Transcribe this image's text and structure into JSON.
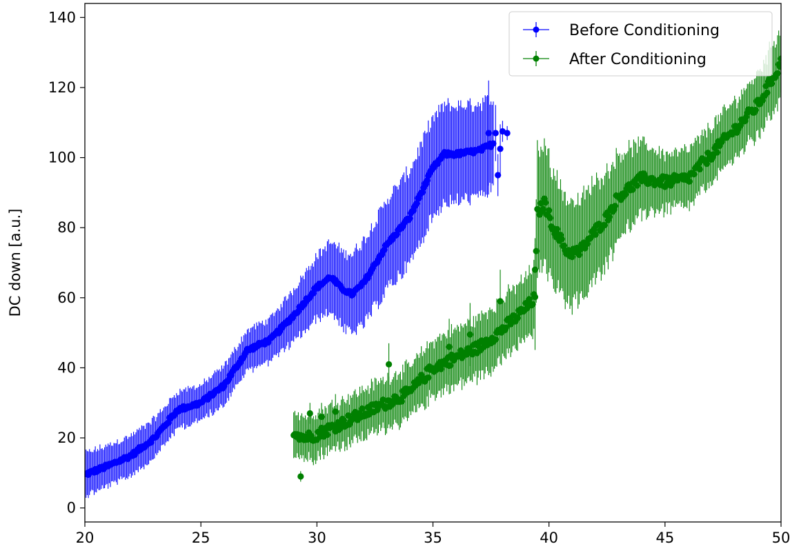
{
  "chart_data": {
    "type": "scatter",
    "subtype": "errorbar",
    "title": "",
    "xlabel": "",
    "ylabel": "DC down [a.u.]",
    "xlim": [
      20,
      50
    ],
    "ylim": [
      -4,
      144
    ],
    "xticks": [
      20,
      25,
      30,
      35,
      40,
      45,
      50
    ],
    "yticks": [
      0,
      20,
      40,
      60,
      80,
      100,
      120,
      140
    ],
    "grid": false,
    "legend_position": "top-right",
    "series": [
      {
        "name": "Before Conditioning",
        "color": "#0000ff",
        "x_start": 20.0,
        "x_step": 0.1,
        "anchors": [
          [
            20.0,
            9.5
          ],
          [
            21.0,
            12
          ],
          [
            22.0,
            15
          ],
          [
            23.0,
            20
          ],
          [
            24.0,
            28
          ],
          [
            25.0,
            30
          ],
          [
            26.0,
            35
          ],
          [
            27.0,
            45
          ],
          [
            28.0,
            48
          ],
          [
            29.0,
            55
          ],
          [
            30.0,
            63
          ],
          [
            30.6,
            66
          ],
          [
            31.0,
            63
          ],
          [
            31.5,
            61
          ],
          [
            32.0,
            64
          ],
          [
            33.0,
            75
          ],
          [
            34.0,
            83
          ],
          [
            34.5,
            90
          ],
          [
            35.0,
            97
          ],
          [
            35.5,
            101
          ],
          [
            36.0,
            101
          ],
          [
            37.0,
            102
          ],
          [
            37.6,
            104
          ]
        ],
        "err_anchors": [
          [
            20.0,
            6
          ],
          [
            25.0,
            5
          ],
          [
            28.0,
            6
          ],
          [
            30.0,
            9
          ],
          [
            32.0,
            12
          ],
          [
            35.0,
            14
          ],
          [
            37.6,
            13
          ]
        ],
        "extra_points": [
          {
            "x": 37.7,
            "y": 107,
            "err": 8
          },
          {
            "x": 37.8,
            "y": 95,
            "err": 6
          },
          {
            "x": 37.9,
            "y": 102.5,
            "err": 7
          },
          {
            "x": 38.0,
            "y": 107.5,
            "err": 3
          },
          {
            "x": 38.2,
            "y": 107,
            "err": 2
          },
          {
            "x": 37.4,
            "y": 107,
            "err": 15
          }
        ]
      },
      {
        "name": "After Conditioning",
        "color": "#008000",
        "x_start": 29.0,
        "x_step": 0.1,
        "anchors": [
          [
            29.0,
            22
          ],
          [
            29.5,
            20
          ],
          [
            30.0,
            21
          ],
          [
            31.0,
            24
          ],
          [
            32.0,
            27
          ],
          [
            33.0,
            30
          ],
          [
            34.0,
            33
          ],
          [
            35.0,
            40
          ],
          [
            36.0,
            43
          ],
          [
            37.0,
            46
          ],
          [
            38.0,
            51
          ],
          [
            39.0,
            57
          ],
          [
            39.4,
            60
          ],
          [
            39.5,
            84
          ],
          [
            39.8,
            87
          ],
          [
            40.2,
            80
          ],
          [
            40.8,
            73
          ],
          [
            41.3,
            73
          ],
          [
            42.0,
            79
          ],
          [
            42.5,
            83
          ],
          [
            43.0,
            89
          ],
          [
            44.0,
            94
          ],
          [
            45.0,
            93
          ],
          [
            46.0,
            94
          ],
          [
            47.0,
            101
          ],
          [
            48.0,
            108
          ],
          [
            49.0,
            115
          ],
          [
            50.0,
            127
          ]
        ],
        "err_anchors": [
          [
            29.0,
            6
          ],
          [
            33.0,
            7
          ],
          [
            36.0,
            8
          ],
          [
            39.3,
            9
          ],
          [
            39.5,
            18
          ],
          [
            40.5,
            15
          ],
          [
            42.0,
            14
          ],
          [
            45.0,
            8
          ],
          [
            48.0,
            8
          ],
          [
            50.0,
            10
          ]
        ],
        "extra_points": [
          {
            "x": 29.3,
            "y": 9,
            "err": 1.5
          },
          {
            "x": 29.7,
            "y": 27,
            "err": 3
          },
          {
            "x": 30.2,
            "y": 26,
            "err": 4
          },
          {
            "x": 30.8,
            "y": 27.5,
            "err": 5
          },
          {
            "x": 33.1,
            "y": 41,
            "err": 6
          },
          {
            "x": 35.7,
            "y": 46,
            "err": 8
          },
          {
            "x": 36.6,
            "y": 49.5,
            "err": 9
          },
          {
            "x": 37.9,
            "y": 59,
            "err": 9
          },
          {
            "x": 39.4,
            "y": 68,
            "err": 9
          }
        ]
      }
    ]
  }
}
